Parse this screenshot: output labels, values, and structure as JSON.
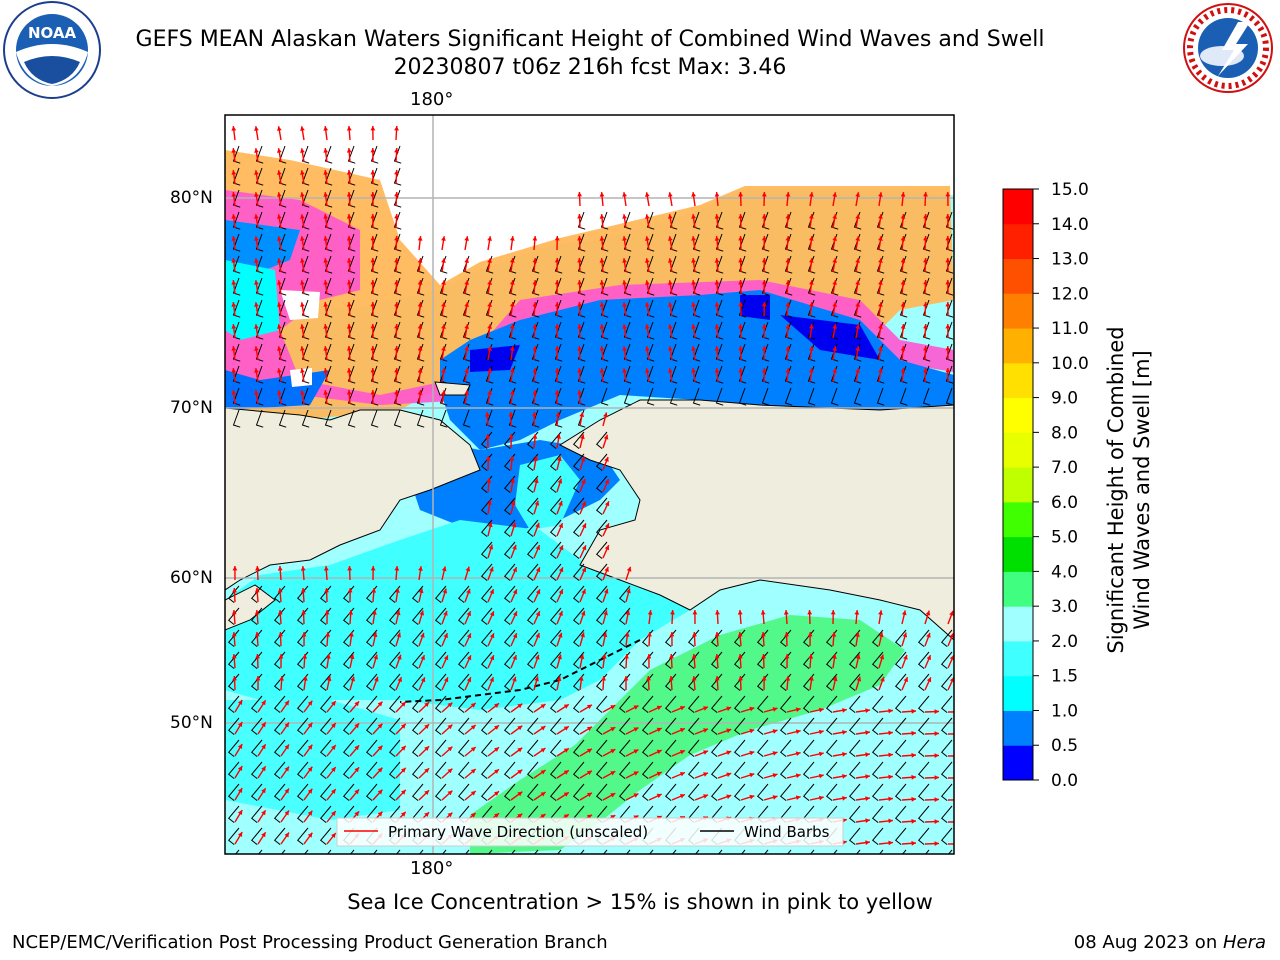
{
  "header": {
    "title_line1": "GEFS MEAN Alaskan Waters Significant Height of Combined Wind Waves and Swell",
    "title_line2": "20230807 t06z 216h fcst   Max: 3.46",
    "noaa_logo_text": "NOAA",
    "noaa_ring_text": "NATIONAL OCEANIC AND ATMOSPHERIC ADMINISTRATION · U.S. DEPARTMENT OF COMMERCE",
    "nws_ring_text": "NATIONAL WEATHER SERVICE"
  },
  "map": {
    "top_lon_label": "180°",
    "bottom_lon_label": "180°",
    "lat_labels": [
      "80°N",
      "70°N",
      "60°N",
      "50°N"
    ],
    "legend": {
      "wave_direction": "Primary Wave Direction (unscaled)",
      "wind_barbs": "Wind Barbs"
    },
    "colors": {
      "land": "#efedde",
      "grid": "#b3b3b3",
      "arrow": "#ff0000",
      "barb": "#000000"
    }
  },
  "colorbar": {
    "label_line1": "Significant Height of Combined",
    "label_line2": "Wind Waves and Swell [m]",
    "ticks": [
      "0.0",
      "0.5",
      "1.0",
      "1.5",
      "2.0",
      "3.0",
      "4.0",
      "5.0",
      "6.0",
      "7.0",
      "8.0",
      "9.0",
      "10.0",
      "11.0",
      "12.0",
      "13.0",
      "14.0",
      "15.0"
    ],
    "colors": [
      "#0000ff",
      "#0080ff",
      "#00ffff",
      "#40ffff",
      "#a0ffff",
      "#40ff80",
      "#00e000",
      "#40ff00",
      "#c0ff00",
      "#e8ff00",
      "#ffff00",
      "#ffe000",
      "#ffb000",
      "#ff8000",
      "#ff5000",
      "#ff2000",
      "#ff0000"
    ]
  },
  "footer": {
    "ice_note": "Sea Ice Concentration > 15% is shown in pink to yellow",
    "org": "NCEP/EMC/Verification Post Processing Product Generation Branch",
    "date": "08 Aug 2023 on ",
    "machine": "Hera"
  }
}
